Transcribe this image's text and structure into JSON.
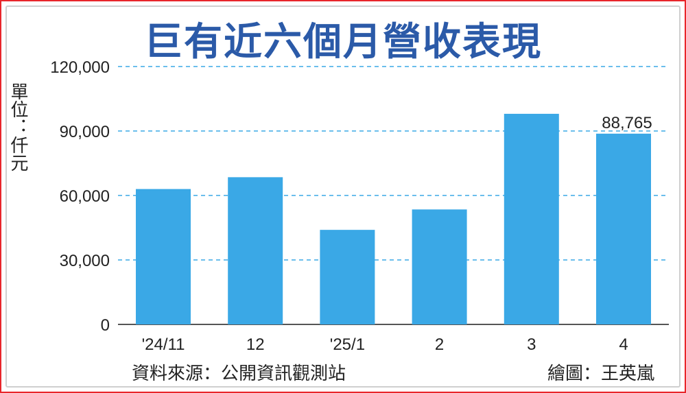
{
  "title": "巨有近六個月營收表現",
  "unit_label": "單位：仟元",
  "source": "資料來源：公開資訊觀測站",
  "credit": "繪圖：王英嵐",
  "colors": {
    "bar": "#3aa8e6",
    "grid": "#3aa8e6",
    "title": "#2b5aa8",
    "axis": "#555555"
  },
  "chart_data": {
    "type": "bar",
    "categories": [
      "'24/11",
      "12",
      "'25/1",
      "2",
      "3",
      "4"
    ],
    "values": [
      63000,
      68500,
      44000,
      53500,
      98000,
      88765
    ],
    "data_labels": [
      "",
      "",
      "",
      "",
      "",
      "88,765"
    ],
    "yticks": [
      0,
      30000,
      60000,
      90000,
      120000
    ],
    "ytick_labels": [
      "0",
      "30,000",
      "60,000",
      "90,000",
      "120,000"
    ],
    "ylim": [
      0,
      120000
    ],
    "grid": true,
    "title": "巨有近六個月營收表現",
    "ylabel": "單位：仟元",
    "xlabel": ""
  }
}
